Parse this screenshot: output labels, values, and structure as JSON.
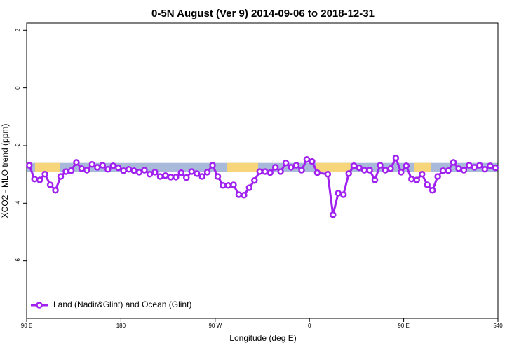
{
  "chart_data": {
    "type": "line",
    "title": "0-5N August (Ver 9)   2014-09-06 to 2018-12-31",
    "x_label": "Longitude (deg E)",
    "y_label": "XCO2 - MLO trend (ppm)",
    "xlim": [
      90,
      540
    ],
    "ylim": [
      -8,
      2.25
    ],
    "xticks": [
      {
        "value": 90,
        "label": "90 E"
      },
      180,
      {
        "value": 270,
        "label": "90 W"
      },
      {
        "value": 360,
        "label": "0"
      },
      {
        "value": 450,
        "label": "90 E"
      },
      540
    ],
    "yticks": [
      -6,
      -4,
      -2,
      0,
      2
    ],
    "legend_position": "bottom-left",
    "band": {
      "ylim": [
        -2.9,
        -2.6
      ],
      "color": "#a9b9d9",
      "segments": [
        {
          "x": [
            98,
            121.5
          ],
          "color": "#f7d67b"
        },
        {
          "x": [
            281,
            311
          ],
          "color": "#f7d67b"
        },
        {
          "x": [
            366,
            399
          ],
          "color": "#f7d67b"
        },
        {
          "x": [
            460,
            476
          ],
          "color": "#f7d67b"
        }
      ]
    },
    "series": [
      {
        "name": "Land (Nadir&Glint) and Ocean (Glint)",
        "color": "#a020f0",
        "x": [
          92.5,
          97.5,
          102.5,
          107.5,
          112.5,
          117.5,
          122.5,
          127.5,
          132.5,
          137.5,
          142.5,
          147.5,
          152.5,
          157.5,
          162.5,
          167.5,
          172.5,
          177.5,
          182.5,
          187.5,
          192.5,
          197.5,
          202.5,
          207.5,
          212.5,
          217.5,
          222.5,
          227.5,
          232.5,
          237.5,
          242.5,
          247.5,
          252.5,
          257.5,
          262.5,
          267.5,
          272.5,
          277.5,
          282.5,
          287.5,
          292.5,
          297.5,
          302.5,
          307.5,
          312.5,
          317.5,
          322.5,
          327.5,
          332.5,
          337.5,
          342.5,
          347.5,
          352.5,
          357.5,
          362.5,
          367.5,
          377.5,
          382.5,
          387.5,
          392.5,
          397.5,
          402.5,
          407.5,
          412.5,
          417.5,
          422.5,
          427.5,
          432.5,
          437.5,
          442.5,
          447.5,
          452.5,
          457.5,
          462.5,
          467.5,
          472.5,
          477.5,
          482.5,
          487.5,
          492.5,
          497.5,
          502.5,
          507.5,
          512.5,
          517.5,
          522.5,
          527.5,
          532.5,
          537.5
        ],
        "values": [
          -2.68,
          -3.16,
          -3.19,
          -2.99,
          -3.36,
          -3.55,
          -3.07,
          -2.9,
          -2.87,
          -2.58,
          -2.8,
          -2.85,
          -2.65,
          -2.75,
          -2.68,
          -2.82,
          -2.7,
          -2.77,
          -2.87,
          -2.82,
          -2.87,
          -2.92,
          -2.85,
          -2.99,
          -2.92,
          -3.07,
          -3.04,
          -3.09,
          -3.09,
          -2.94,
          -3.11,
          -2.9,
          -2.97,
          -3.07,
          -2.92,
          -2.68,
          -3.07,
          -3.38,
          -3.38,
          -3.36,
          -3.7,
          -3.72,
          -3.46,
          -3.21,
          -2.9,
          -2.9,
          -2.94,
          -2.75,
          -2.9,
          -2.6,
          -2.75,
          -2.68,
          -2.85,
          -2.48,
          -2.55,
          -2.94,
          -2.99,
          -4.4,
          -3.65,
          -3.7,
          -2.97,
          -2.7,
          -2.77,
          -2.85,
          -2.85,
          -3.19,
          -2.68,
          -2.85,
          -2.8,
          -2.43,
          -2.92,
          -2.7,
          -3.16,
          -3.19,
          -2.99,
          -3.36,
          -3.55,
          -3.07,
          -2.87,
          -2.87,
          -2.58,
          -2.8,
          -2.85,
          -2.68,
          -2.75,
          -2.68,
          -2.82,
          -2.7,
          -2.77
        ]
      }
    ]
  }
}
